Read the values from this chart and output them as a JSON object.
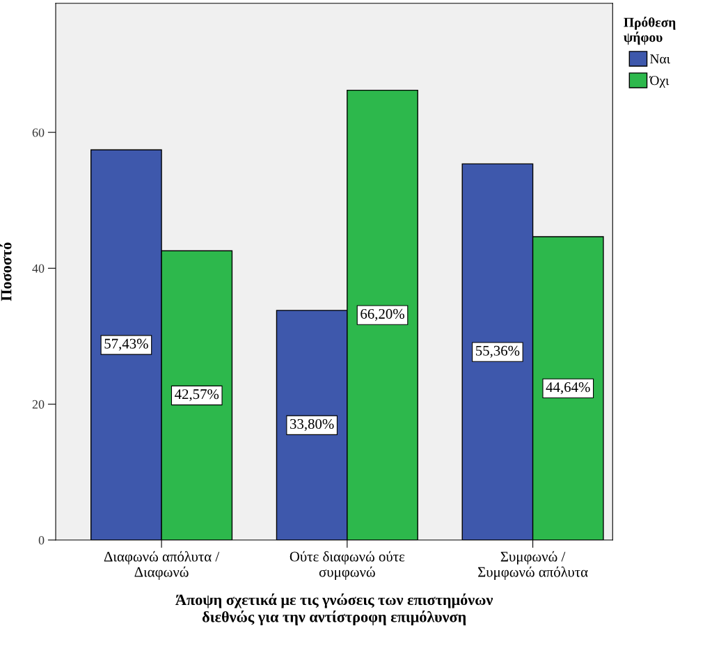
{
  "chart_data": {
    "type": "bar",
    "xlabel": "Άποψη σχετικά με τις γνώσεις των επιστημόνων\nδιεθνώς για την αντίστροφη επιμόλυνση",
    "ylabel": "Ποσοστό",
    "legend_title": "Πρόθεση\nψήφου",
    "categories": [
      "Διαφωνώ απόλυτα /\nΔιαφωνώ",
      "Ούτε διαφωνώ ούτε\nσυμφωνώ",
      "Συμφωνώ /\nΣυμφωνώ απόλυτα"
    ],
    "series": [
      {
        "name": "Ναι",
        "color": "#3e58ac",
        "values": [
          57.43,
          33.8,
          55.36
        ],
        "value_labels": [
          "57,43%",
          "33,80%",
          "55,36%"
        ]
      },
      {
        "name": "Όχι",
        "color": "#2db84c",
        "values": [
          42.57,
          66.2,
          44.64
        ],
        "value_labels": [
          "42,57%",
          "66,20%",
          "44,64%"
        ]
      }
    ],
    "ylim": [
      0,
      79
    ],
    "yticks": [
      0,
      20,
      40,
      60
    ],
    "grid": false,
    "legend": "top right"
  }
}
